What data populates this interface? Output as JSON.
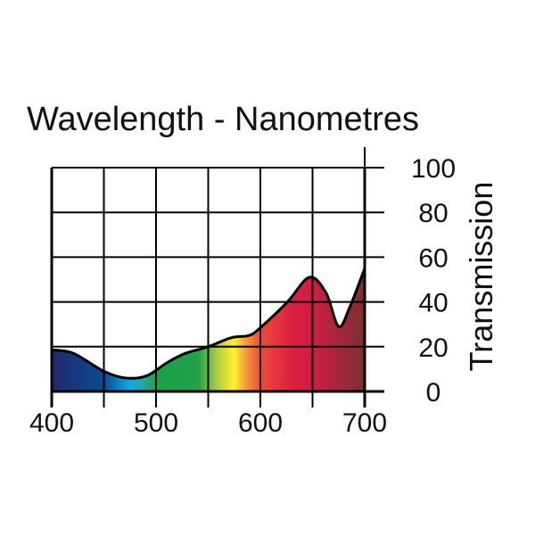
{
  "chart_data": {
    "type": "area",
    "title": "Wavelength - Nanometres",
    "xlabel": "Wavelength - Nanometres",
    "ylabel": "Transmission",
    "xlim": [
      400,
      700
    ],
    "ylim": [
      0,
      100
    ],
    "x_ticks": [
      "400",
      "500",
      "600",
      "700"
    ],
    "y_ticks": [
      "100",
      "80",
      "60",
      "40",
      "20",
      "0"
    ],
    "grid": true,
    "x_grid_step": 50,
    "y_grid_step": 20,
    "series": [
      {
        "name": "Transmission",
        "x": [
          400,
          421,
          450,
          471,
          491,
          511,
          528,
          550,
          572,
          589,
          600,
          626,
          647,
          663,
          675,
          686,
          700
        ],
        "y": [
          18.6,
          17,
          9,
          6,
          7,
          13,
          17,
          20,
          24,
          25,
          28.5,
          40,
          51,
          44,
          29,
          38,
          55
        ]
      }
    ],
    "fill_colors": [
      "#1f2a6e",
      "#0a4c8f",
      "#12a8e4",
      "#2aa58a",
      "#1aa04a",
      "#22a24a",
      "#b8d040",
      "#fff030",
      "#f5a040",
      "#ee4a3a",
      "#dc2040",
      "#d01d45",
      "#7a3030"
    ]
  }
}
